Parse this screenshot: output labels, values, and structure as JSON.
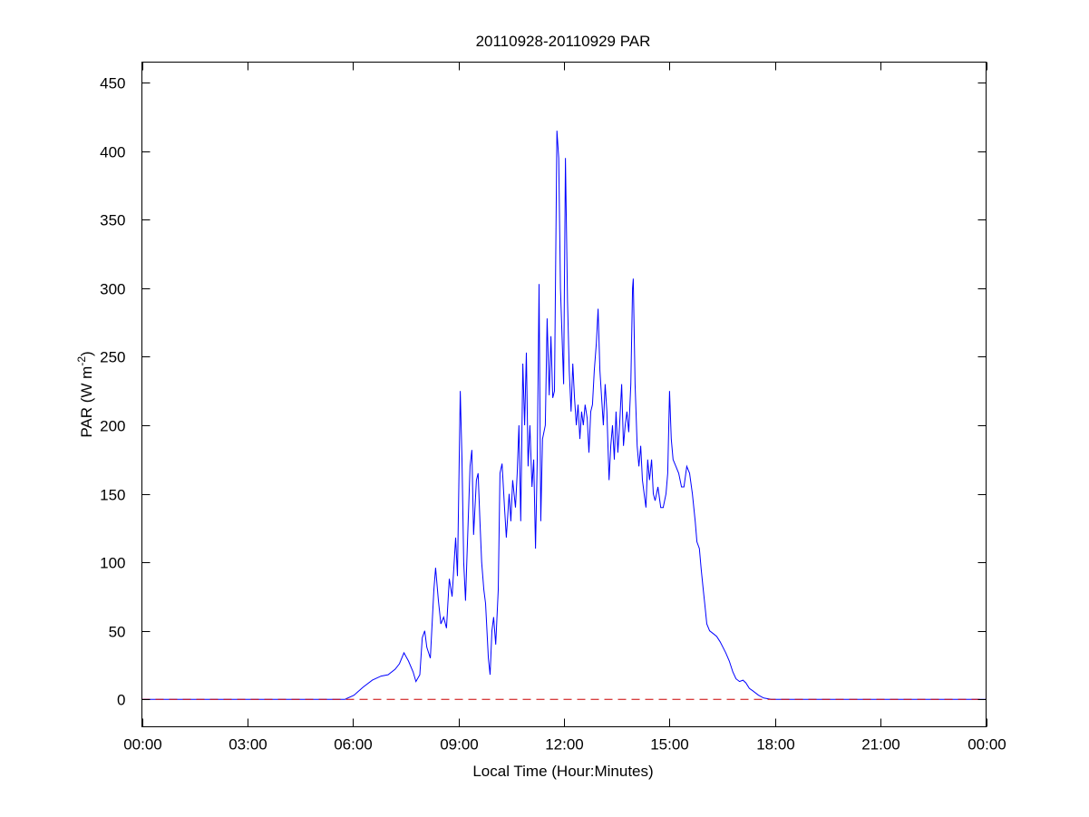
{
  "chart_data": {
    "type": "line",
    "title": "20110928-20110929 PAR",
    "xlabel": "Local Time (Hour:Minutes)",
    "ylabel": "PAR (W m-2)",
    "ylabel_parts": {
      "main": "PAR (W m",
      "sup": "-2",
      "end": ")"
    },
    "xlim": [
      0,
      24
    ],
    "ylim": [
      -20,
      465
    ],
    "x_ticks": [
      0,
      3,
      6,
      9,
      12,
      15,
      18,
      21,
      24
    ],
    "x_tick_labels": [
      "00:00",
      "03:00",
      "06:00",
      "09:00",
      "12:00",
      "15:00",
      "18:00",
      "21:00",
      "00:00"
    ],
    "y_ticks": [
      0,
      50,
      100,
      150,
      200,
      250,
      300,
      350,
      400,
      450
    ],
    "y_tick_labels": [
      "0",
      "50",
      "100",
      "150",
      "200",
      "250",
      "300",
      "350",
      "400",
      "450"
    ],
    "grid": false,
    "series": [
      {
        "name": "PAR",
        "color": "#0000ff",
        "style": "solid",
        "x": [
          0,
          5.77,
          6.03,
          6.29,
          6.55,
          6.8,
          7.0,
          7.2,
          7.32,
          7.45,
          7.58,
          7.71,
          7.79,
          7.9,
          7.97,
          8.04,
          8.1,
          8.2,
          8.3,
          8.35,
          8.43,
          8.5,
          8.58,
          8.66,
          8.74,
          8.82,
          8.92,
          8.97,
          9.05,
          9.1,
          9.15,
          9.2,
          9.25,
          9.33,
          9.38,
          9.43,
          9.51,
          9.56,
          9.61,
          9.66,
          9.72,
          9.77,
          9.85,
          9.9,
          9.95,
          10.0,
          10.06,
          10.13,
          10.18,
          10.24,
          10.31,
          10.36,
          10.44,
          10.49,
          10.54,
          10.62,
          10.67,
          10.72,
          10.77,
          10.83,
          10.88,
          10.93,
          10.98,
          11.03,
          11.09,
          11.14,
          11.19,
          11.24,
          11.29,
          11.34,
          11.39,
          11.47,
          11.52,
          11.58,
          11.63,
          11.68,
          11.73,
          11.8,
          11.85,
          11.9,
          11.95,
          11.99,
          12.04,
          12.1,
          12.15,
          12.2,
          12.25,
          12.3,
          12.35,
          12.4,
          12.45,
          12.5,
          12.55,
          12.6,
          12.66,
          12.71,
          12.76,
          12.81,
          12.86,
          12.92,
          12.97,
          13.02,
          13.07,
          13.12,
          13.17,
          13.22,
          13.28,
          13.33,
          13.38,
          13.43,
          13.48,
          13.53,
          13.58,
          13.64,
          13.69,
          13.74,
          13.79,
          13.84,
          13.9,
          13.95,
          13.97,
          14.02,
          14.08,
          14.13,
          14.18,
          14.23,
          14.28,
          14.33,
          14.38,
          14.43,
          14.49,
          14.54,
          14.59,
          14.67,
          14.75,
          14.82,
          14.9,
          14.95,
          15.0,
          15.05,
          15.1,
          15.18,
          15.26,
          15.34,
          15.41,
          15.49,
          15.57,
          15.65,
          15.73,
          15.78,
          15.85,
          15.9,
          15.96,
          16.0,
          16.06,
          16.14,
          16.24,
          16.34,
          16.44,
          16.52,
          16.6,
          16.7,
          16.8,
          16.89,
          16.99,
          17.09,
          17.17,
          17.27,
          17.38,
          17.53,
          17.68,
          17.89,
          24
        ],
        "y": [
          0,
          0,
          3,
          9,
          14,
          17,
          18,
          22,
          26,
          34,
          28,
          20,
          13,
          18,
          45,
          50,
          38,
          30,
          80,
          96,
          72,
          55,
          60,
          52,
          88,
          75,
          118,
          90,
          225,
          175,
          100,
          72,
          110,
          170,
          182,
          120,
          160,
          165,
          130,
          100,
          80,
          70,
          30,
          18,
          50,
          60,
          40,
          80,
          165,
          172,
          140,
          118,
          150,
          130,
          160,
          140,
          165,
          200,
          130,
          245,
          200,
          253,
          170,
          200,
          155,
          175,
          110,
          175,
          303,
          130,
          190,
          200,
          278,
          222,
          265,
          220,
          225,
          415,
          395,
          300,
          260,
          230,
          395,
          290,
          240,
          210,
          245,
          220,
          200,
          215,
          190,
          210,
          200,
          215,
          205,
          180,
          210,
          215,
          240,
          260,
          285,
          240,
          220,
          200,
          230,
          210,
          160,
          185,
          200,
          175,
          210,
          180,
          200,
          230,
          185,
          200,
          210,
          195,
          230,
          300,
          307,
          230,
          185,
          170,
          185,
          160,
          150,
          140,
          175,
          160,
          175,
          150,
          145,
          155,
          140,
          140,
          150,
          165,
          225,
          190,
          175,
          170,
          165,
          155,
          155,
          170,
          165,
          150,
          130,
          115,
          110,
          95,
          80,
          70,
          55,
          50,
          48,
          46,
          42,
          38,
          34,
          28,
          20,
          15,
          13,
          14,
          12,
          8,
          6,
          3,
          1,
          0,
          0
        ]
      },
      {
        "name": "zero-line",
        "color": "#cc0000",
        "style": "dashed",
        "x": [
          0,
          24
        ],
        "y": [
          0,
          0
        ]
      }
    ]
  }
}
